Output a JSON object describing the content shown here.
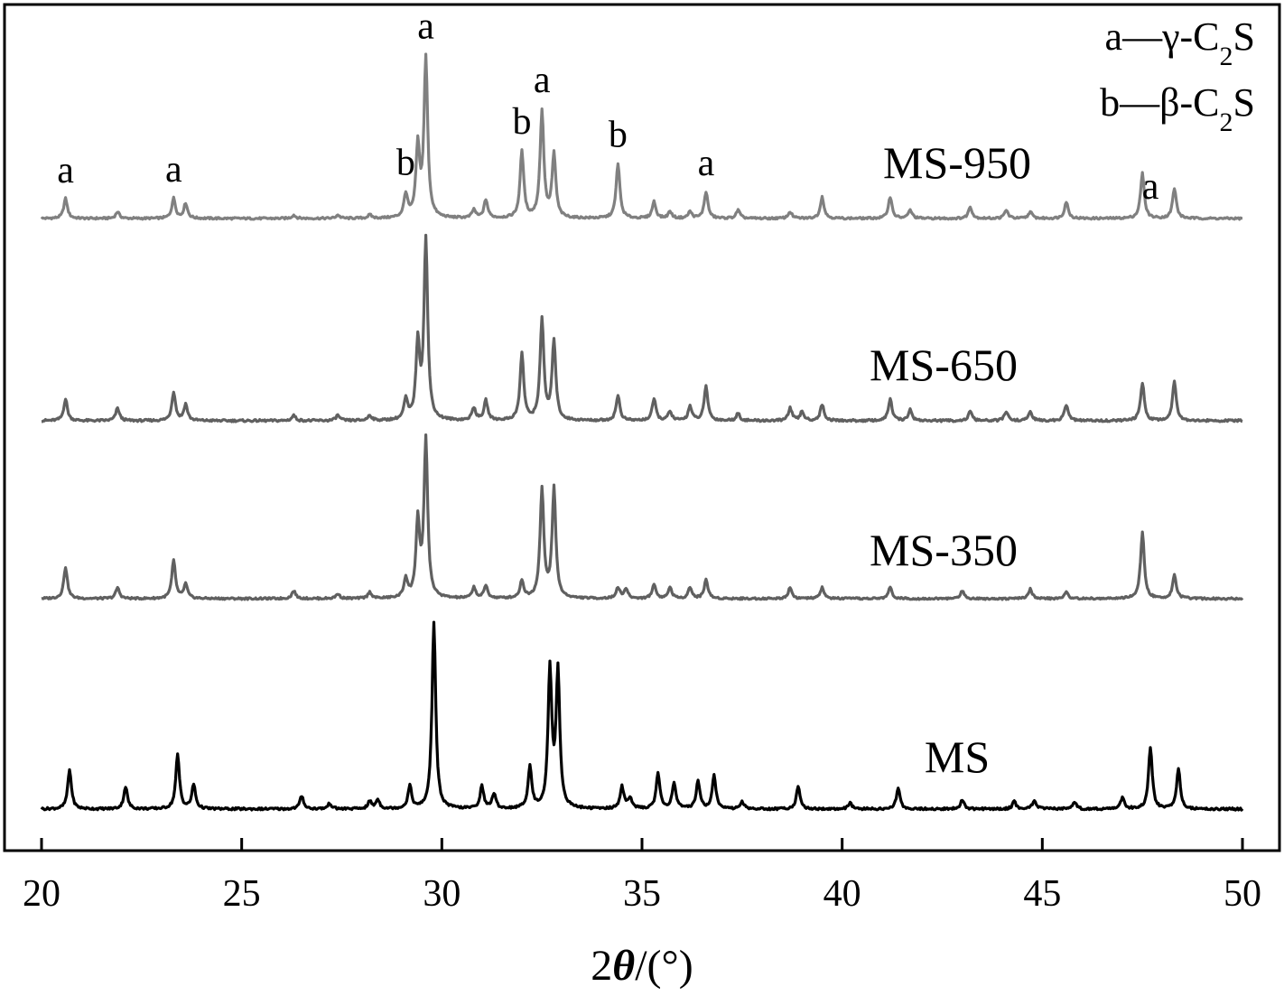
{
  "chart_data": {
    "type": "line",
    "title": "",
    "xlabel": {
      "prefix": "2",
      "theta": "θ",
      "suffix": "/(°)"
    },
    "ylabel": "",
    "xlim": [
      20,
      50
    ],
    "x_ticks": [
      20,
      25,
      30,
      35,
      40,
      45,
      50
    ],
    "grid": false,
    "legend": {
      "placement": "top-right",
      "entries": [
        {
          "key": "a",
          "dash": "—",
          "greek": "γ",
          "rest": "-C",
          "sub": "2",
          "end": "S"
        },
        {
          "key": "b",
          "dash": "—",
          "greek": "β",
          "rest": "-C",
          "sub": "2",
          "end": "S"
        }
      ]
    },
    "series": [
      {
        "name": "MS-950",
        "color": "#808080",
        "peaks": [
          [
            20.6,
            0.12
          ],
          [
            21.9,
            0.04
          ],
          [
            23.3,
            0.12
          ],
          [
            23.6,
            0.09
          ],
          [
            26.3,
            0.02
          ],
          [
            27.4,
            0.02
          ],
          [
            28.2,
            0.02
          ],
          [
            29.1,
            0.14
          ],
          [
            29.4,
            0.42
          ],
          [
            29.6,
            0.95
          ],
          [
            30.8,
            0.05
          ],
          [
            31.1,
            0.11
          ],
          [
            32.0,
            0.4
          ],
          [
            32.5,
            0.64
          ],
          [
            32.8,
            0.38
          ],
          [
            34.4,
            0.33
          ],
          [
            35.3,
            0.1
          ],
          [
            35.7,
            0.04
          ],
          [
            36.2,
            0.04
          ],
          [
            36.6,
            0.16
          ],
          [
            37.4,
            0.05
          ],
          [
            38.7,
            0.04
          ],
          [
            39.5,
            0.13
          ],
          [
            41.2,
            0.13
          ],
          [
            41.7,
            0.05
          ],
          [
            43.2,
            0.07
          ],
          [
            44.1,
            0.05
          ],
          [
            44.7,
            0.04
          ],
          [
            45.6,
            0.1
          ],
          [
            47.5,
            0.27
          ],
          [
            48.3,
            0.18
          ]
        ]
      },
      {
        "name": "MS-650",
        "color": "#606060",
        "peaks": [
          [
            20.6,
            0.12
          ],
          [
            21.9,
            0.07
          ],
          [
            23.3,
            0.16
          ],
          [
            23.6,
            0.09
          ],
          [
            26.3,
            0.03
          ],
          [
            27.4,
            0.03
          ],
          [
            28.2,
            0.03
          ],
          [
            29.1,
            0.11
          ],
          [
            29.4,
            0.42
          ],
          [
            29.6,
            1.0
          ],
          [
            30.8,
            0.07
          ],
          [
            31.1,
            0.11
          ],
          [
            32.0,
            0.37
          ],
          [
            32.5,
            0.56
          ],
          [
            32.8,
            0.44
          ],
          [
            34.4,
            0.14
          ],
          [
            35.3,
            0.12
          ],
          [
            35.7,
            0.05
          ],
          [
            36.2,
            0.08
          ],
          [
            36.6,
            0.19
          ],
          [
            37.4,
            0.04
          ],
          [
            38.7,
            0.07
          ],
          [
            39.0,
            0.05
          ],
          [
            39.5,
            0.09
          ],
          [
            41.2,
            0.12
          ],
          [
            41.7,
            0.06
          ],
          [
            43.2,
            0.05
          ],
          [
            44.1,
            0.05
          ],
          [
            44.7,
            0.05
          ],
          [
            45.6,
            0.09
          ],
          [
            47.5,
            0.21
          ],
          [
            48.3,
            0.22
          ]
        ]
      },
      {
        "name": "MS-350",
        "color": "#606060",
        "peaks": [
          [
            20.6,
            0.2
          ],
          [
            21.9,
            0.07
          ],
          [
            23.3,
            0.24
          ],
          [
            23.6,
            0.09
          ],
          [
            26.3,
            0.05
          ],
          [
            27.4,
            0.03
          ],
          [
            28.2,
            0.04
          ],
          [
            29.1,
            0.12
          ],
          [
            29.4,
            0.48
          ],
          [
            29.6,
            1.0
          ],
          [
            30.8,
            0.07
          ],
          [
            31.1,
            0.08
          ],
          [
            32.0,
            0.11
          ],
          [
            32.5,
            0.69
          ],
          [
            32.8,
            0.69
          ],
          [
            34.4,
            0.07
          ],
          [
            34.6,
            0.06
          ],
          [
            35.3,
            0.09
          ],
          [
            35.7,
            0.07
          ],
          [
            36.2,
            0.07
          ],
          [
            36.6,
            0.12
          ],
          [
            38.7,
            0.07
          ],
          [
            39.5,
            0.07
          ],
          [
            41.2,
            0.07
          ],
          [
            43.0,
            0.05
          ],
          [
            44.7,
            0.06
          ],
          [
            45.6,
            0.04
          ],
          [
            47.5,
            0.42
          ],
          [
            48.3,
            0.15
          ]
        ]
      },
      {
        "name": "MS",
        "color": "#000000",
        "peaks": [
          [
            20.7,
            0.21
          ],
          [
            22.1,
            0.12
          ],
          [
            23.4,
            0.29
          ],
          [
            23.8,
            0.13
          ],
          [
            26.5,
            0.07
          ],
          [
            27.2,
            0.03
          ],
          [
            28.2,
            0.04
          ],
          [
            28.4,
            0.05
          ],
          [
            29.2,
            0.12
          ],
          [
            29.8,
            1.0
          ],
          [
            31.0,
            0.12
          ],
          [
            31.3,
            0.08
          ],
          [
            32.2,
            0.22
          ],
          [
            32.7,
            0.74
          ],
          [
            32.9,
            0.73
          ],
          [
            34.5,
            0.12
          ],
          [
            34.7,
            0.06
          ],
          [
            35.4,
            0.19
          ],
          [
            35.8,
            0.14
          ],
          [
            36.4,
            0.15
          ],
          [
            36.8,
            0.18
          ],
          [
            37.5,
            0.04
          ],
          [
            38.9,
            0.12
          ],
          [
            40.2,
            0.03
          ],
          [
            41.4,
            0.11
          ],
          [
            43.0,
            0.05
          ],
          [
            44.3,
            0.04
          ],
          [
            44.8,
            0.05
          ],
          [
            45.8,
            0.04
          ],
          [
            47.0,
            0.06
          ],
          [
            47.7,
            0.33
          ],
          [
            48.4,
            0.22
          ]
        ]
      }
    ],
    "peak_labels": [
      {
        "series": "MS-950",
        "x": 20.6,
        "text": "a"
      },
      {
        "series": "MS-950",
        "x": 23.3,
        "text": "a"
      },
      {
        "series": "MS-950",
        "x": 29.1,
        "text": "b"
      },
      {
        "series": "MS-950",
        "x": 29.6,
        "text": "a"
      },
      {
        "series": "MS-950",
        "x": 32.0,
        "text": "b"
      },
      {
        "series": "MS-950",
        "x": 32.5,
        "text": "a"
      },
      {
        "series": "MS-950",
        "x": 34.4,
        "text": "b"
      },
      {
        "series": "MS-950",
        "x": 36.6,
        "text": "a"
      },
      {
        "series": "MS-950",
        "x": 47.7,
        "text": "a"
      }
    ]
  }
}
